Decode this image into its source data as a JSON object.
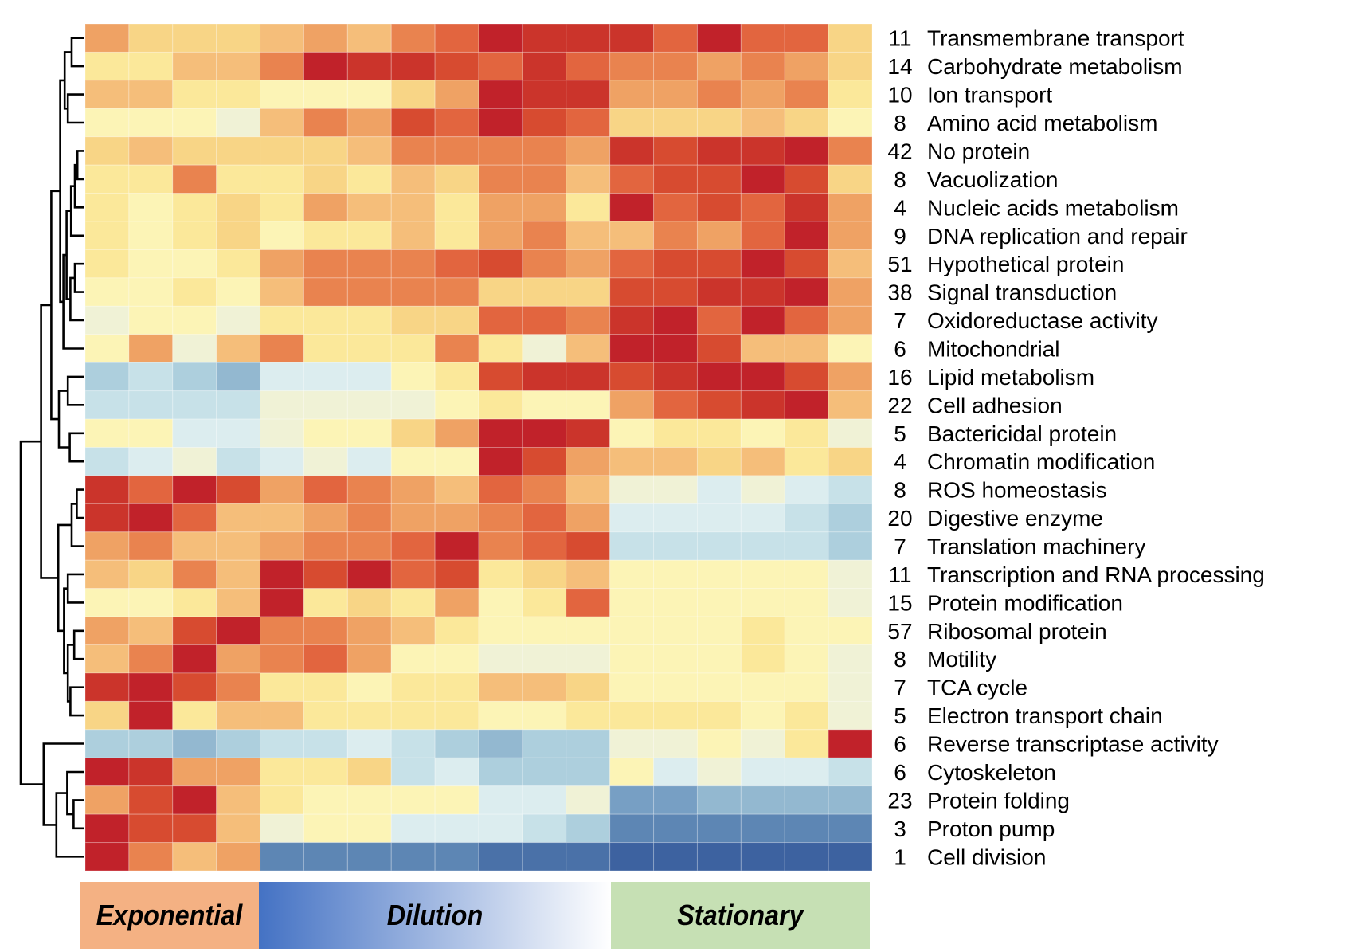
{
  "chart_data": {
    "type": "heatmap",
    "title": "",
    "value_scale": "relative expression, -9 (dark blue, low) to 9 (dark red, high), diverging red-yellow-blue",
    "color_scale": {
      "9": "#C1222A",
      "8": "#CB342B",
      "7": "#D74B30",
      "6": "#E2653F",
      "5": "#E9834F",
      "4": "#EFA264",
      "3": "#F5BE7A",
      "2": "#F8D586",
      "1": "#FBE89A",
      "0": "#FCF4B6",
      "-1": "#F0F2D6",
      "-2": "#DCEDEF",
      "-3": "#C7E1E8",
      "-4": "#ADCFDD",
      "-5": "#93B8D0",
      "-6": "#779FC4",
      "-7": "#5D86B4",
      "-8": "#4A71A8",
      "-9": "#3D62A0"
    },
    "n_columns": 18,
    "column_groups": [
      {
        "label": "Exponential",
        "columns": 4,
        "color": "#F4B183"
      },
      {
        "label": "Dilution",
        "columns": 8,
        "color_start": "#4472C4",
        "color_end": "#FFFFFF"
      },
      {
        "label": "Stationary",
        "columns": 6,
        "color": "#C6E0B4"
      }
    ],
    "rows": [
      {
        "count": "11",
        "label": "Transmembrane transport",
        "values": [
          4,
          2,
          2,
          2,
          3,
          4,
          3,
          5,
          6,
          9,
          8,
          8,
          8,
          6,
          9,
          6,
          6,
          2
        ]
      },
      {
        "count": "14",
        "label": "Carbohydrate metabolism",
        "values": [
          1,
          1,
          3,
          3,
          5,
          9,
          8,
          8,
          7,
          6,
          8,
          6,
          5,
          5,
          4,
          5,
          4,
          2
        ]
      },
      {
        "count": "10",
        "label": "Ion transport",
        "values": [
          3,
          3,
          1,
          1,
          0,
          0,
          0,
          2,
          4,
          9,
          8,
          8,
          4,
          4,
          5,
          4,
          5,
          1
        ]
      },
      {
        "count": "8",
        "label": "Amino acid metabolism",
        "values": [
          0,
          0,
          0,
          -1,
          3,
          5,
          4,
          7,
          6,
          9,
          7,
          6,
          2,
          2,
          2,
          3,
          2,
          0
        ]
      },
      {
        "count": "42",
        "label": "No protein",
        "values": [
          2,
          3,
          2,
          2,
          2,
          2,
          3,
          5,
          5,
          5,
          5,
          4,
          8,
          7,
          8,
          8,
          9,
          5
        ]
      },
      {
        "count": "8",
        "label": "Vacuolization",
        "values": [
          1,
          1,
          5,
          1,
          1,
          2,
          1,
          3,
          2,
          5,
          5,
          3,
          6,
          7,
          7,
          9,
          7,
          2
        ]
      },
      {
        "count": "4",
        "label": "Nucleic acids metabolism",
        "values": [
          1,
          0,
          1,
          2,
          1,
          4,
          3,
          3,
          1,
          4,
          4,
          1,
          9,
          6,
          7,
          6,
          8,
          4
        ]
      },
      {
        "count": "9",
        "label": "DNA replication and repair",
        "values": [
          1,
          0,
          1,
          2,
          0,
          1,
          1,
          3,
          1,
          4,
          5,
          3,
          3,
          5,
          4,
          6,
          9,
          4
        ]
      },
      {
        "count": "51",
        "label": "Hypothetical protein",
        "values": [
          1,
          0,
          0,
          1,
          4,
          5,
          5,
          5,
          6,
          7,
          5,
          4,
          6,
          7,
          7,
          9,
          7,
          3
        ]
      },
      {
        "count": "38",
        "label": "Signal transduction",
        "values": [
          0,
          0,
          1,
          0,
          3,
          5,
          5,
          5,
          5,
          2,
          2,
          2,
          7,
          7,
          8,
          8,
          9,
          4
        ]
      },
      {
        "count": "7",
        "label": "Oxidoreductase activity",
        "values": [
          -1,
          0,
          0,
          -1,
          1,
          1,
          1,
          2,
          2,
          6,
          6,
          5,
          8,
          9,
          6,
          9,
          6,
          4
        ]
      },
      {
        "count": "6",
        "label": "Mitochondrial",
        "values": [
          0,
          4,
          -1,
          3,
          5,
          1,
          1,
          1,
          5,
          1,
          -1,
          3,
          9,
          9,
          7,
          3,
          3,
          0
        ]
      },
      {
        "count": "16",
        "label": "Lipid metabolism",
        "values": [
          -4,
          -3,
          -4,
          -5,
          -2,
          -2,
          -2,
          0,
          1,
          7,
          8,
          8,
          7,
          8,
          9,
          9,
          7,
          4
        ]
      },
      {
        "count": "22",
        "label": "Cell adhesion",
        "values": [
          -3,
          -3,
          -3,
          -3,
          -1,
          -1,
          -1,
          -1,
          0,
          1,
          0,
          0,
          4,
          6,
          7,
          8,
          9,
          3
        ]
      },
      {
        "count": "5",
        "label": "Bactericidal protein",
        "values": [
          0,
          0,
          -2,
          -2,
          -1,
          0,
          0,
          2,
          4,
          9,
          9,
          8,
          0,
          1,
          1,
          0,
          1,
          -1
        ]
      },
      {
        "count": "4",
        "label": "Chromatin modification",
        "values": [
          -3,
          -2,
          -1,
          -3,
          -2,
          -1,
          -2,
          0,
          0,
          9,
          7,
          4,
          3,
          3,
          2,
          3,
          1,
          2
        ]
      },
      {
        "count": "8",
        "label": "ROS homeostasis",
        "values": [
          8,
          6,
          9,
          7,
          4,
          6,
          5,
          4,
          3,
          6,
          5,
          3,
          -1,
          -1,
          -2,
          -1,
          -2,
          -3
        ]
      },
      {
        "count": "20",
        "label": "Digestive enzyme",
        "values": [
          8,
          9,
          6,
          3,
          3,
          4,
          5,
          4,
          4,
          5,
          6,
          4,
          -2,
          -2,
          -2,
          -2,
          -3,
          -4
        ]
      },
      {
        "count": "7",
        "label": "Translation machinery",
        "values": [
          4,
          5,
          3,
          3,
          4,
          5,
          5,
          6,
          9,
          5,
          6,
          7,
          -3,
          -3,
          -3,
          -3,
          -3,
          -4
        ]
      },
      {
        "count": "11",
        "label": "Transcription and RNA processing",
        "values": [
          3,
          2,
          5,
          3,
          9,
          7,
          9,
          6,
          7,
          1,
          2,
          3,
          0,
          0,
          0,
          0,
          0,
          -1
        ]
      },
      {
        "count": "15",
        "label": "Protein modification",
        "values": [
          0,
          0,
          1,
          3,
          9,
          1,
          2,
          1,
          4,
          0,
          1,
          6,
          0,
          0,
          0,
          0,
          0,
          -1
        ]
      },
      {
        "count": "57",
        "label": "Ribosomal protein",
        "values": [
          4,
          3,
          7,
          9,
          5,
          5,
          4,
          3,
          1,
          0,
          0,
          0,
          0,
          0,
          0,
          1,
          0,
          0
        ]
      },
      {
        "count": "8",
        "label": "Motility",
        "values": [
          3,
          5,
          9,
          4,
          5,
          6,
          4,
          0,
          0,
          -1,
          -1,
          -1,
          0,
          0,
          0,
          1,
          0,
          -1
        ]
      },
      {
        "count": "7",
        "label": "TCA cycle",
        "values": [
          8,
          9,
          7,
          5,
          1,
          1,
          0,
          1,
          1,
          3,
          3,
          2,
          0,
          0,
          0,
          0,
          0,
          -1
        ]
      },
      {
        "count": "5",
        "label": "Electron transport chain",
        "values": [
          2,
          9,
          1,
          3,
          3,
          1,
          1,
          1,
          1,
          0,
          0,
          1,
          1,
          1,
          1,
          0,
          1,
          -1
        ]
      },
      {
        "count": "6",
        "label": "Reverse transcriptase activity",
        "values": [
          -4,
          -4,
          -5,
          -4,
          -3,
          -3,
          -2,
          -3,
          -4,
          -5,
          -4,
          -4,
          -1,
          -1,
          0,
          -1,
          1,
          9
        ]
      },
      {
        "count": "6",
        "label": "Cytoskeleton",
        "values": [
          9,
          8,
          4,
          4,
          1,
          1,
          2,
          -3,
          -2,
          -4,
          -4,
          -4,
          0,
          -2,
          -1,
          -2,
          -2,
          -3
        ]
      },
      {
        "count": "23",
        "label": "Protein folding",
        "values": [
          4,
          7,
          9,
          3,
          1,
          0,
          0,
          0,
          0,
          -2,
          -2,
          -1,
          -6,
          -6,
          -5,
          -5,
          -5,
          -5
        ]
      },
      {
        "count": "3",
        "label": "Proton pump",
        "values": [
          9,
          7,
          7,
          3,
          -1,
          0,
          0,
          -2,
          -2,
          -2,
          -3,
          -4,
          -7,
          -7,
          -7,
          -7,
          -7,
          -7
        ]
      },
      {
        "count": "1",
        "label": "Cell division",
        "values": [
          9,
          5,
          3,
          4,
          -7,
          -7,
          -7,
          -7,
          -7,
          -8,
          -8,
          -8,
          -9,
          -9,
          -9,
          -9,
          -9,
          -9
        ]
      }
    ],
    "row_dendrogram": {
      "description": "hierarchical clustering of rows (leaf indices 0-29, merge heights as relative distance, larger = more dissimilar)",
      "merges": [
        {
          "a": "L0",
          "b": "L1",
          "height": 0.2,
          "id": "n1"
        },
        {
          "a": "L2",
          "b": "L3",
          "height": 0.26,
          "id": "n2"
        },
        {
          "a": "n1",
          "b": "n2",
          "height": 0.31,
          "id": "n3"
        },
        {
          "a": "L4",
          "b": "L5",
          "height": 0.11,
          "id": "n4"
        },
        {
          "a": "n4",
          "b": "L6",
          "height": 0.15,
          "id": "n5"
        },
        {
          "a": "n5",
          "b": "L7",
          "height": 0.21,
          "id": "n6"
        },
        {
          "a": "L8",
          "b": "L9",
          "height": 0.15,
          "id": "n7"
        },
        {
          "a": "n7",
          "b": "L10",
          "height": 0.22,
          "id": "n8"
        },
        {
          "a": "n6",
          "b": "n8",
          "height": 0.28,
          "id": "n9"
        },
        {
          "a": "n9",
          "b": "L11",
          "height": 0.33,
          "id": "n10"
        },
        {
          "a": "n3",
          "b": "n10",
          "height": 0.38,
          "id": "n11"
        },
        {
          "a": "L12",
          "b": "L13",
          "height": 0.26,
          "id": "n12"
        },
        {
          "a": "L14",
          "b": "L15",
          "height": 0.23,
          "id": "n13"
        },
        {
          "a": "n12",
          "b": "n13",
          "height": 0.4,
          "id": "n14"
        },
        {
          "a": "n11",
          "b": "n14",
          "height": 0.52,
          "id": "n15"
        },
        {
          "a": "L16",
          "b": "L17",
          "height": 0.12,
          "id": "n16"
        },
        {
          "a": "n16",
          "b": "L18",
          "height": 0.2,
          "id": "n17"
        },
        {
          "a": "L19",
          "b": "L20",
          "height": 0.26,
          "id": "n18"
        },
        {
          "a": "L21",
          "b": "L22",
          "height": 0.16,
          "id": "n19"
        },
        {
          "a": "L23",
          "b": "L24",
          "height": 0.22,
          "id": "n20"
        },
        {
          "a": "n19",
          "b": "n20",
          "height": 0.26,
          "id": "n21"
        },
        {
          "a": "n18",
          "b": "n21",
          "height": 0.32,
          "id": "n22"
        },
        {
          "a": "n17",
          "b": "n22",
          "height": 0.41,
          "id": "n23"
        },
        {
          "a": "n15",
          "b": "n23",
          "height": 0.68,
          "id": "n24"
        },
        {
          "a": "L27",
          "b": "L28",
          "height": 0.17,
          "id": "n25"
        },
        {
          "a": "L26",
          "b": "n25",
          "height": 0.27,
          "id": "n26"
        },
        {
          "a": "n26",
          "b": "L29",
          "height": 0.44,
          "id": "n27"
        },
        {
          "a": "L25",
          "b": "n27",
          "height": 0.64,
          "id": "n28"
        },
        {
          "a": "n24",
          "b": "n28",
          "height": 1.0,
          "id": "n29"
        }
      ]
    },
    "xlabel": "",
    "ylabel": "",
    "legend": "none",
    "grid": false
  }
}
